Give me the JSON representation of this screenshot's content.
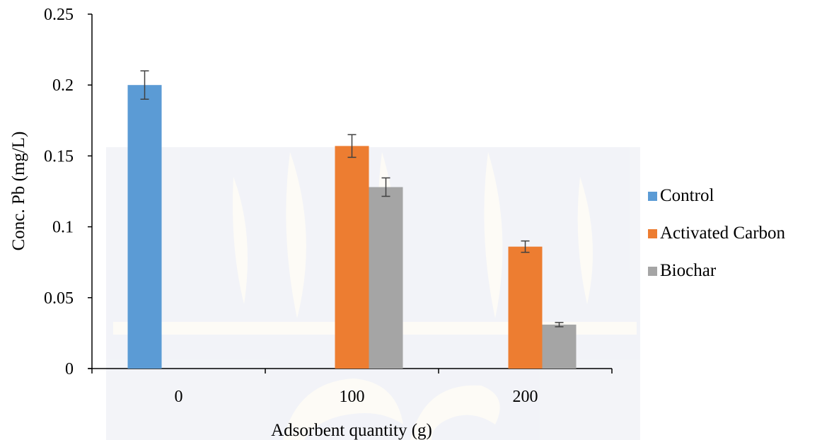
{
  "chart_data": {
    "type": "bar",
    "title": "",
    "xlabel": "Adsorbent quantity (g)",
    "ylabel": "Conc. Pb (mg/L)",
    "categories": [
      "0",
      "100",
      "200"
    ],
    "ylim": [
      0,
      0.25
    ],
    "yticks": [
      "0",
      "0.05",
      "0.1",
      "0.15",
      "0.2",
      "0.25"
    ],
    "grid": false,
    "legend_position": "right",
    "series": [
      {
        "name": "Control",
        "color": "#5B9BD5",
        "values": [
          0.2,
          null,
          null
        ],
        "errors": [
          0.01,
          null,
          null
        ]
      },
      {
        "name": "Activated Carbon",
        "color": "#ED7D31",
        "values": [
          null,
          0.157,
          0.086
        ],
        "errors": [
          null,
          0.008,
          0.004
        ]
      },
      {
        "name": "Biochar",
        "color": "#A5A5A5",
        "values": [
          null,
          0.128,
          0.031
        ],
        "errors": [
          null,
          0.0065,
          0.0015
        ]
      }
    ]
  }
}
